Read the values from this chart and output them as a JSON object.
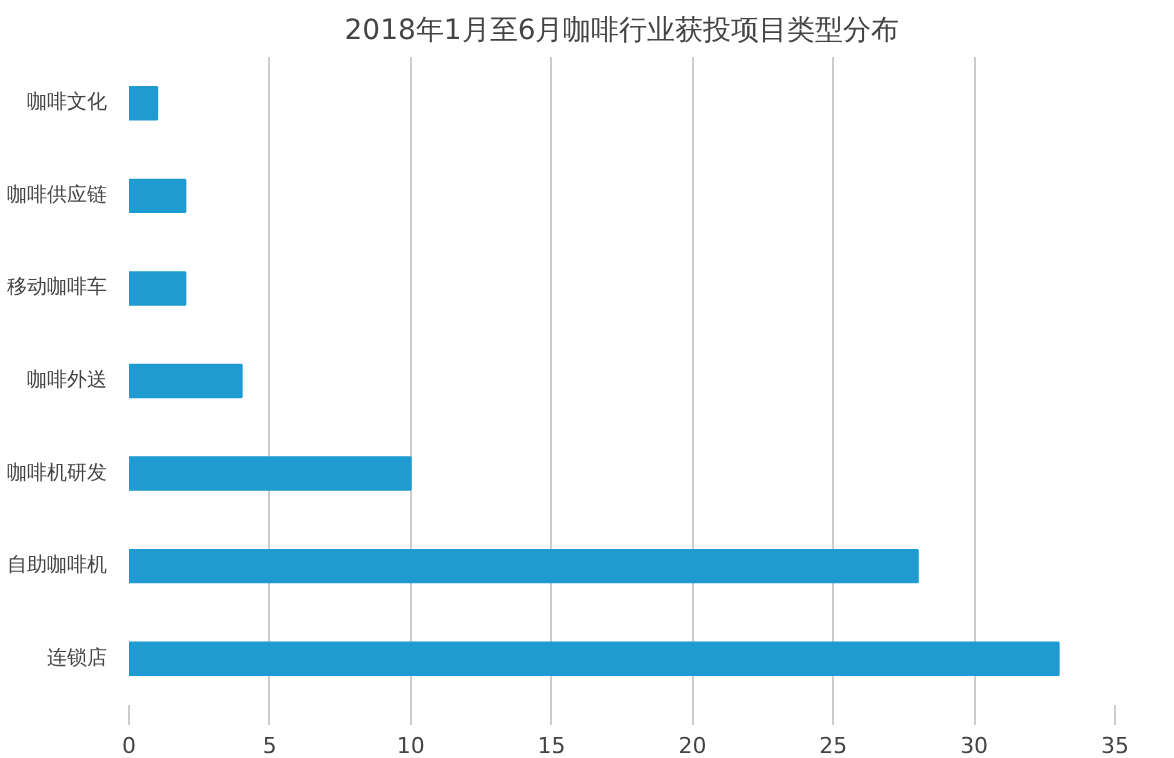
{
  "chart_data": {
    "type": "bar",
    "orientation": "horizontal",
    "title": "2018年1月至6月咖啡行业获投项目类型分布",
    "categories": [
      "咖啡文化",
      "咖啡供应链",
      "移动咖啡车",
      "咖啡外送",
      "咖啡机研发",
      "自助咖啡机",
      "连锁店"
    ],
    "values": [
      1,
      2,
      2,
      4,
      10,
      28,
      33
    ],
    "color": "#1f9bd1",
    "xlim": [
      0,
      35
    ],
    "xticks": [
      0,
      5,
      10,
      15,
      20,
      25,
      30,
      35
    ],
    "grid": "x"
  }
}
